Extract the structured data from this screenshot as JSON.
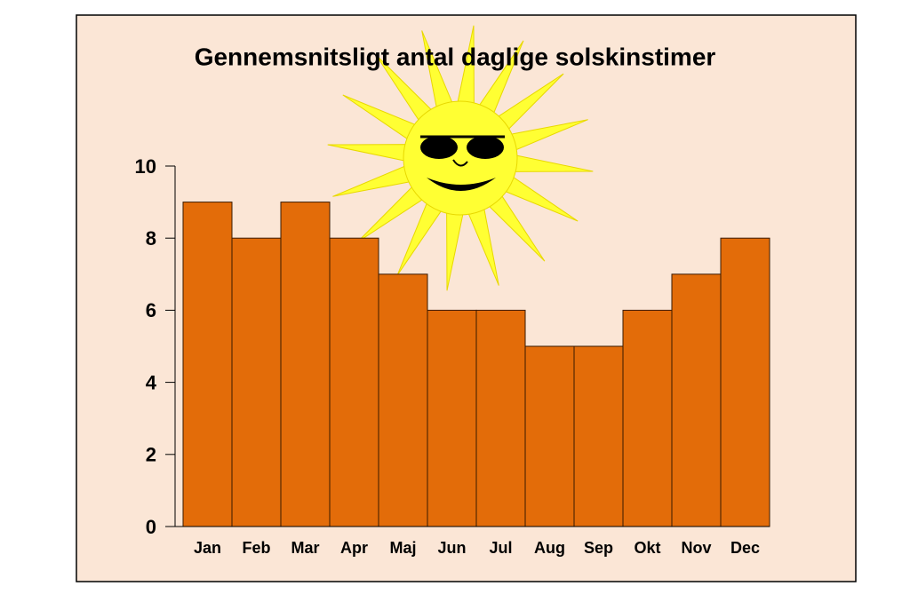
{
  "chart_data": {
    "type": "bar",
    "title": "Gennemsnitsligt antal daglige solskinstimer",
    "categories": [
      "Jan",
      "Feb",
      "Mar",
      "Apr",
      "Maj",
      "Jun",
      "Jul",
      "Aug",
      "Sep",
      "Okt",
      "Nov",
      "Dec"
    ],
    "values": [
      9,
      8,
      9,
      8,
      7,
      6,
      6,
      5,
      5,
      6,
      7,
      8
    ],
    "color": "#e36c09",
    "ylim": [
      0,
      10
    ],
    "yticks": [
      0,
      2,
      4,
      6,
      8,
      10
    ],
    "grid": false
  }
}
